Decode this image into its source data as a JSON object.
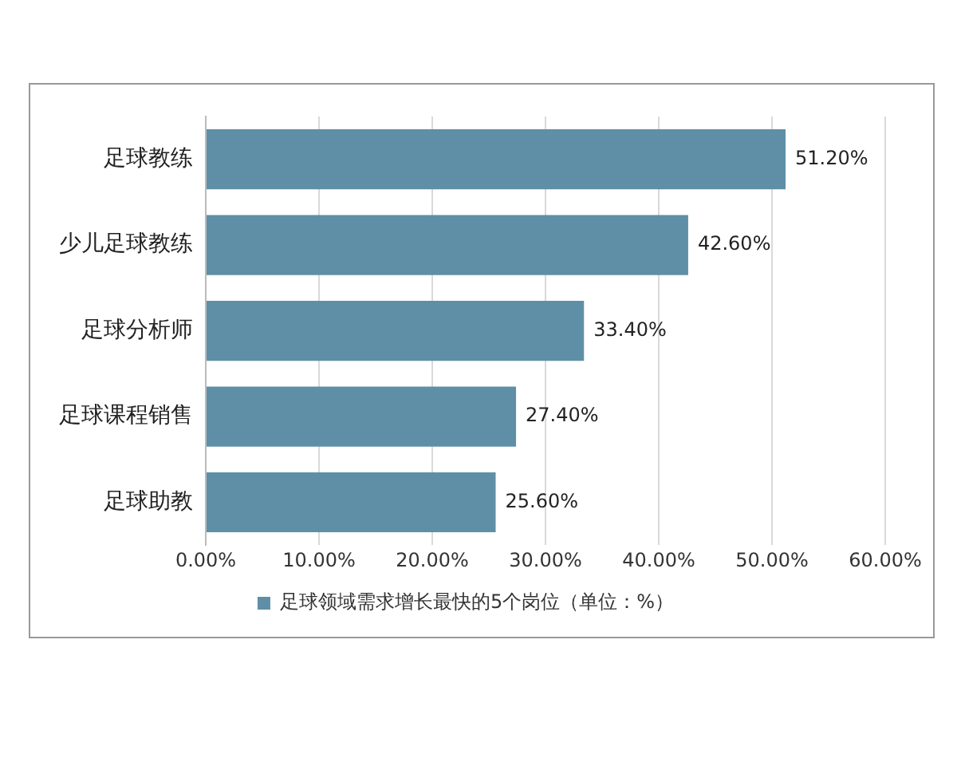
{
  "chart_data": {
    "type": "bar",
    "orientation": "horizontal",
    "categories": [
      "足球教练",
      "少儿足球教练",
      "足球分析师",
      "足球课程销售",
      "足球助教"
    ],
    "series": [
      {
        "name": "足球领域需求增长最快的5个岗位（单位：%）",
        "color": "#5f8fa6",
        "values": [
          51.2,
          42.6,
          33.4,
          27.4,
          25.6
        ],
        "value_labels": [
          "51.20%",
          "42.60%",
          "33.40%",
          "27.40%",
          "25.60%"
        ]
      }
    ],
    "xlim": [
      0,
      60
    ],
    "xticks": [
      {
        "value": 0,
        "label": "0.00%"
      },
      {
        "value": 10,
        "label": "10.00%"
      },
      {
        "value": 20,
        "label": "20.00%"
      },
      {
        "value": 30,
        "label": "30.00%"
      },
      {
        "value": 40,
        "label": "40.00%"
      },
      {
        "value": 50,
        "label": "50.00%"
      },
      {
        "value": 60,
        "label": "60.00%"
      }
    ],
    "grid": "x",
    "legend": "bottom"
  }
}
